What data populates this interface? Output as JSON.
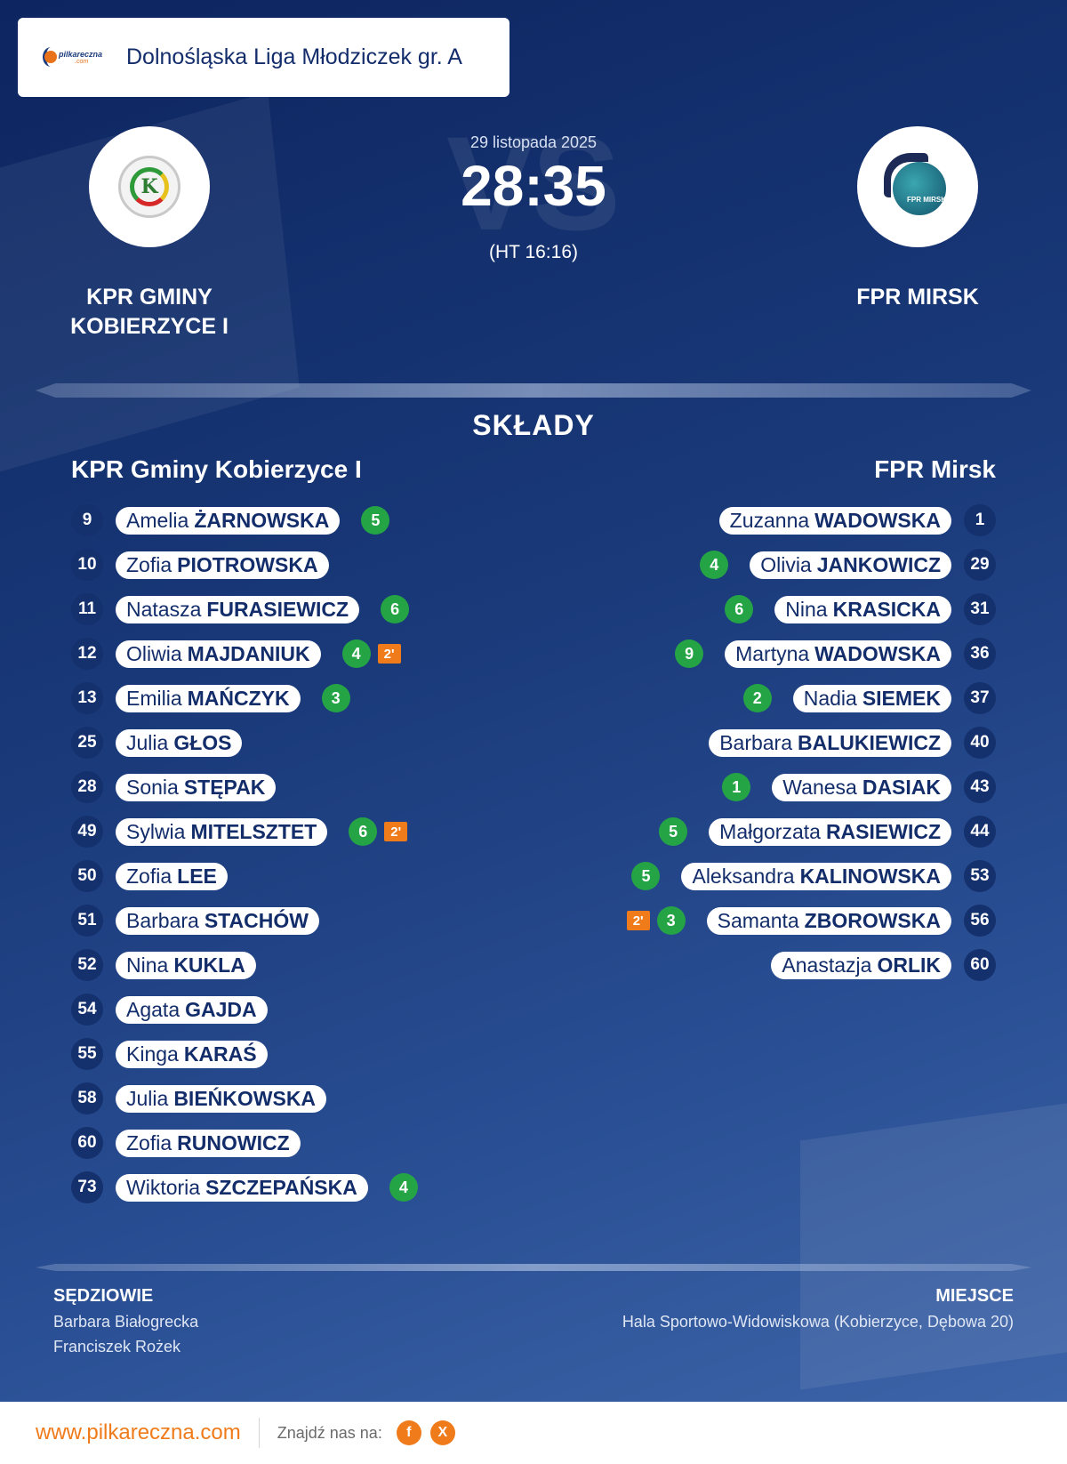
{
  "header": {
    "brand": "pilkareczna",
    "brand_sub": ".com",
    "league": "Dolnośląska Liga Młodziczek gr. A"
  },
  "match": {
    "date": "29 listopada 2025",
    "score": "28:35",
    "halftime": "(HT 16:16)",
    "vs": "VS"
  },
  "home": {
    "name": "KPR GMINY KOBIERZYCE I",
    "lineup_title": "KPR Gminy Kobierzyce I",
    "crest_letter": "K",
    "players": [
      {
        "number": "9",
        "first": "Amelia",
        "last": "ŻARNOWSKA",
        "goals": "5"
      },
      {
        "number": "10",
        "first": "Zofia",
        "last": "PIOTROWSKA"
      },
      {
        "number": "11",
        "first": "Natasza",
        "last": "FURASIEWICZ",
        "goals": "6"
      },
      {
        "number": "12",
        "first": "Oliwia",
        "last": "MAJDANIUK",
        "goals": "4",
        "penalty": "2'"
      },
      {
        "number": "13",
        "first": "Emilia",
        "last": "MAŃCZYK",
        "goals": "3"
      },
      {
        "number": "25",
        "first": "Julia",
        "last": "GŁOS"
      },
      {
        "number": "28",
        "first": "Sonia",
        "last": "STĘPAK"
      },
      {
        "number": "49",
        "first": "Sylwia",
        "last": "MITELSZTET",
        "goals": "6",
        "penalty": "2'"
      },
      {
        "number": "50",
        "first": "Zofia",
        "last": "LEE"
      },
      {
        "number": "51",
        "first": "Barbara",
        "last": "STACHÓW"
      },
      {
        "number": "52",
        "first": "Nina",
        "last": "KUKLA"
      },
      {
        "number": "54",
        "first": "Agata",
        "last": "GAJDA"
      },
      {
        "number": "55",
        "first": "Kinga",
        "last": "KARAŚ"
      },
      {
        "number": "58",
        "first": "Julia",
        "last": "BIEŃKOWSKA"
      },
      {
        "number": "60",
        "first": "Zofia",
        "last": "RUNOWICZ"
      },
      {
        "number": "73",
        "first": "Wiktoria",
        "last": "SZCZEPAŃSKA",
        "goals": "4"
      }
    ]
  },
  "away": {
    "name": "FPR MIRSK",
    "lineup_title": "FPR Mirsk",
    "crest_text": "FPR MIRSK",
    "players": [
      {
        "number": "1",
        "first": "Zuzanna",
        "last": "WADOWSKA"
      },
      {
        "number": "29",
        "first": "Olivia",
        "last": "JANKOWICZ",
        "goals": "4"
      },
      {
        "number": "31",
        "first": "Nina",
        "last": "KRASICKA",
        "goals": "6"
      },
      {
        "number": "36",
        "first": "Martyna",
        "last": "WADOWSKA",
        "goals": "9"
      },
      {
        "number": "37",
        "first": "Nadia",
        "last": "SIEMEK",
        "goals": "2"
      },
      {
        "number": "40",
        "first": "Barbara",
        "last": "BALUKIEWICZ"
      },
      {
        "number": "43",
        "first": "Wanesa",
        "last": "DASIAK",
        "goals": "1"
      },
      {
        "number": "44",
        "first": "Małgorzata",
        "last": "RASIEWICZ",
        "goals": "5"
      },
      {
        "number": "53",
        "first": "Aleksandra",
        "last": "KALINOWSKA",
        "goals": "5"
      },
      {
        "number": "56",
        "first": "Samanta",
        "last": "ZBOROWSKA",
        "goals": "3",
        "penalty": "2'"
      },
      {
        "number": "60",
        "first": "Anastazja",
        "last": "ORLIK"
      }
    ]
  },
  "sections": {
    "lineups_title": "SKŁADY",
    "officials_label": "SĘDZIOWIE",
    "venue_label": "MIEJSCE"
  },
  "officials": [
    "Barbara Białogrecka",
    "Franciszek Rożek"
  ],
  "venue": "Hala Sportowo-Widowiskowa (Kobierzyce, Dębowa 20)",
  "footer": {
    "site": "www.pilkareczna.com",
    "find_us": "Znajdź nas na:",
    "social": [
      {
        "icon": "facebook-icon",
        "glyph": "f"
      },
      {
        "icon": "x-icon",
        "glyph": "X"
      }
    ]
  },
  "colors": {
    "navy": "#132d6b",
    "accent": "#f07b1a",
    "goal_badge": "#25a445"
  }
}
